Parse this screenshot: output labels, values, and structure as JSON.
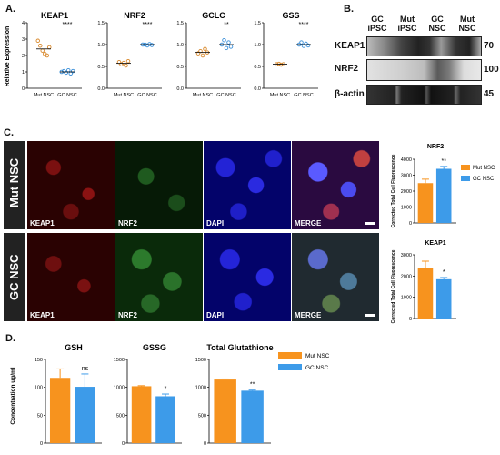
{
  "panels": {
    "A": {
      "letter": "A.",
      "ylabel": "Relative Expression",
      "xticks": [
        "Mut NSC",
        "GC NSC"
      ],
      "plots": [
        {
          "title": "KEAP1",
          "sig": "****",
          "ylim": [
            0,
            4
          ],
          "yticks": [
            "0",
            "1",
            "2",
            "3",
            "4"
          ],
          "tickvals": [
            0,
            1,
            2,
            3,
            4
          ],
          "mut": [
            2.9,
            2.6,
            2.3,
            2.1,
            2.0,
            2.5
          ],
          "gc": [
            1.0,
            1.05,
            0.95,
            1.1,
            0.9,
            1.05
          ],
          "mut_mean": 2.4,
          "gc_mean": 1.0
        },
        {
          "title": "NRF2",
          "sig": "****",
          "ylim": [
            0,
            1.5
          ],
          "yticks": [
            "0.0",
            "0.5",
            "1.0",
            "1.5"
          ],
          "tickvals": [
            0,
            0.5,
            1,
            1.5
          ],
          "mut": [
            0.6,
            0.55,
            0.58,
            0.52,
            0.62
          ],
          "gc": [
            1.0,
            1.0,
            0.98,
            1.01,
            0.99
          ],
          "mut_mean": 0.57,
          "gc_mean": 1.0
        },
        {
          "title": "GCLC",
          "sig": "**",
          "ylim": [
            0,
            1.5
          ],
          "yticks": [
            "0.0",
            "0.5",
            "1.0",
            "1.5"
          ],
          "tickvals": [
            0,
            0.5,
            1,
            1.5
          ],
          "mut": [
            0.8,
            0.85,
            0.75,
            0.9,
            0.82
          ],
          "gc": [
            1.0,
            1.1,
            0.92,
            1.05,
            0.95
          ],
          "mut_mean": 0.82,
          "gc_mean": 1.0
        },
        {
          "title": "GSS",
          "sig": "****",
          "ylim": [
            0,
            1.5
          ],
          "yticks": [
            "0.0",
            "0.5",
            "1.0",
            "1.5"
          ],
          "tickvals": [
            0,
            0.5,
            1,
            1.5
          ],
          "mut": [
            0.55,
            0.56,
            0.54,
            0.55
          ],
          "gc": [
            1.0,
            1.05,
            0.97,
            1.02,
            0.98
          ],
          "mut_mean": 0.55,
          "gc_mean": 1.0
        }
      ]
    },
    "B": {
      "letter": "B.",
      "columns": [
        [
          "GC",
          "iPSC"
        ],
        [
          "Mut",
          "iPSC"
        ],
        [
          "GC",
          "NSC"
        ],
        [
          "Mut",
          "NSC"
        ]
      ],
      "rows": [
        {
          "label": "KEAP1",
          "size": "70"
        },
        {
          "label": "NRF2",
          "size": "100"
        },
        {
          "label": "β-actin",
          "size": "45"
        }
      ]
    },
    "C": {
      "letter": "C.",
      "row_labels": [
        "Mut NSC",
        "GC NSC"
      ],
      "tile_labels": [
        "KEAP1",
        "NRF2",
        "DAPI",
        "MERGE"
      ],
      "charts": [
        {
          "title": "NRF2",
          "sig": "**",
          "ylim": [
            0,
            4000
          ],
          "yticks": [
            "0",
            "1000",
            "2000",
            "3000",
            "4000"
          ],
          "tickvals": [
            0,
            1000,
            2000,
            3000,
            4000
          ],
          "values": [
            2500,
            3400
          ],
          "errors": [
            250,
            150
          ]
        },
        {
          "title": "KEAP1",
          "sig": "*",
          "ylim": [
            0,
            3000
          ],
          "yticks": [
            "0",
            "1000",
            "2000",
            "3000"
          ],
          "tickvals": [
            0,
            1000,
            2000,
            3000
          ],
          "values": [
            2400,
            1850
          ],
          "errors": [
            300,
            80
          ]
        }
      ],
      "ylabel": "Corrected Total Cell Fluorescence",
      "legend": [
        "Mut NSC",
        "GC NSC"
      ]
    },
    "D": {
      "letter": "D.",
      "ylabel": "Concentration ug/ml",
      "charts": [
        {
          "title": "GSH",
          "sig": "ns",
          "ylim": [
            0,
            150
          ],
          "yticks": [
            "0",
            "50",
            "100",
            "150"
          ],
          "tickvals": [
            0,
            50,
            100,
            150
          ],
          "values": [
            117,
            101
          ],
          "errors": [
            16,
            23
          ]
        },
        {
          "title": "GSSG",
          "sig": "*",
          "ylim": [
            0,
            1500
          ],
          "yticks": [
            "0",
            "500",
            "1000",
            "1500"
          ],
          "tickvals": [
            0,
            500,
            1000,
            1500
          ],
          "values": [
            1020,
            840
          ],
          "errors": [
            10,
            40
          ]
        },
        {
          "title": "Total Glutathione",
          "sig": "**",
          "ylim": [
            0,
            1500
          ],
          "yticks": [
            "0",
            "500",
            "1000",
            "1500"
          ],
          "tickvals": [
            0,
            500,
            1000,
            1500
          ],
          "values": [
            1140,
            940
          ],
          "errors": [
            10,
            10
          ]
        }
      ],
      "legend": [
        "Mut NSC",
        "GC NSC"
      ]
    }
  },
  "colors": {
    "mut": "#f7931e",
    "gc": "#3d9be9",
    "mut_dot": "#d98a2e",
    "gc_dot": "#3a8fd9"
  }
}
